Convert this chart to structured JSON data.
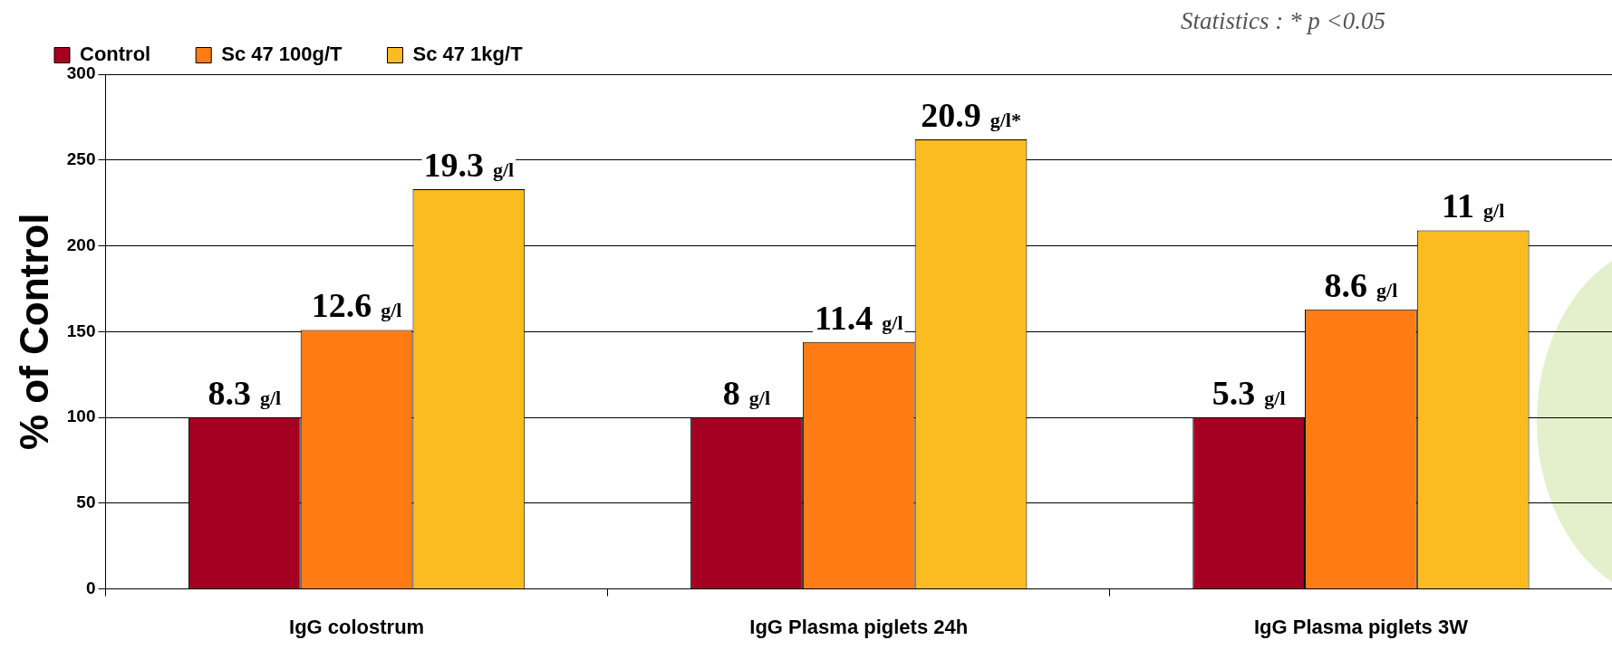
{
  "chart_data": {
    "type": "bar",
    "ylabel": "% of Control",
    "categories": [
      "IgG colostrum",
      "IgG Plasma piglets 24h",
      "IgG Plasma piglets 3W"
    ],
    "series": [
      {
        "name": "Control",
        "color": "#a50021",
        "values": [
          100,
          100,
          100
        ]
      },
      {
        "name": "Sc 47 100g/T",
        "color": "#ff7c14",
        "values": [
          151,
          144,
          163
        ]
      },
      {
        "name": "Sc 47 1kg/T",
        "color": "#fbbc22",
        "values": [
          233,
          262,
          209
        ]
      }
    ],
    "ylim": [
      0,
      300
    ],
    "yticks": [
      0,
      50,
      100,
      150,
      200,
      250,
      300
    ],
    "grid": "y",
    "legend": "top left",
    "annotations": [
      "Statistics : * p <0.05",
      "8.3 g/l",
      "12.6 g/l",
      "19.3 g/l",
      "8 g/l",
      "11.4 g/l",
      "20.9 g/l*",
      "5.3 g/l",
      "8.6 g/l",
      "11 g/l"
    ]
  }
}
